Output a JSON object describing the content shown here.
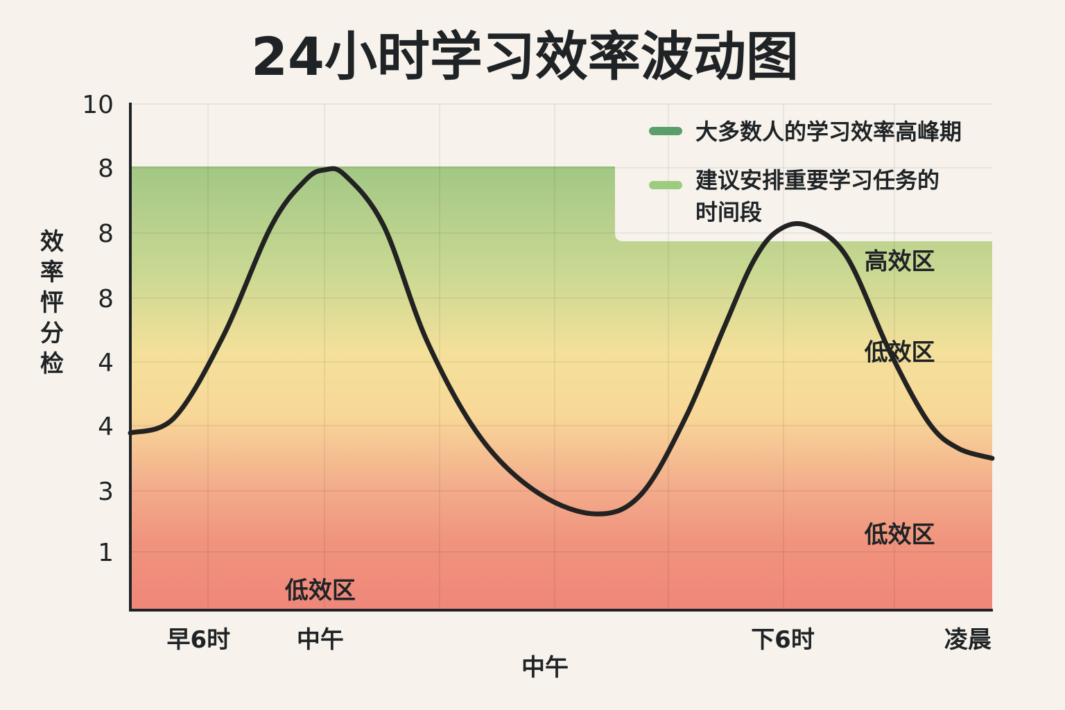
{
  "chart_data": {
    "type": "line",
    "title": "24小时学习效率波动图",
    "ylabel": "效率怦分检",
    "xlabel": "中午",
    "y_ticks": [
      "10",
      "8",
      "8",
      "8",
      "4",
      "4",
      "3",
      "1"
    ],
    "x_ticks": [
      "早6时",
      "中午",
      "下6时",
      "凌晨"
    ],
    "x_tick_hours": [
      6,
      8.5,
      18,
      21.8
    ],
    "xlim": [
      4.6,
      22.3
    ],
    "ylim": [
      0,
      10
    ],
    "grid": true,
    "legend_position": "top-right",
    "legend": [
      {
        "label": "大多数人的学习效率高峰期",
        "color": "#5a9e6a"
      },
      {
        "label": "建议安排重要学习任务的时间段",
        "color": "#9ccd7e"
      }
    ],
    "zones": [
      {
        "label": "高效区",
        "hour": 20.4,
        "value": 6.9
      },
      {
        "label": "低效区",
        "hour": 20.4,
        "value": 5.1
      },
      {
        "label": "低效区",
        "hour": 20.4,
        "value": 1.5
      },
      {
        "label": "低效区",
        "hour": 8.5,
        "value": 0.4
      }
    ],
    "series": [
      {
        "x": [
          4.6,
          5.5,
          6.5,
          7.5,
          8.2,
          8.6,
          9.0,
          9.8,
          10.7,
          11.8,
          13.0,
          14.2,
          15.1,
          16.0,
          16.8,
          17.4,
          17.9,
          18.5,
          19.3,
          20.2,
          21.0,
          21.6,
          22.3
        ],
        "y": [
          3.5,
          3.8,
          5.4,
          7.6,
          8.5,
          8.7,
          8.6,
          7.6,
          5.3,
          3.4,
          2.3,
          1.9,
          2.3,
          3.8,
          5.6,
          6.9,
          7.5,
          7.6,
          7.0,
          5.1,
          3.7,
          3.2,
          3.0
        ]
      }
    ]
  }
}
